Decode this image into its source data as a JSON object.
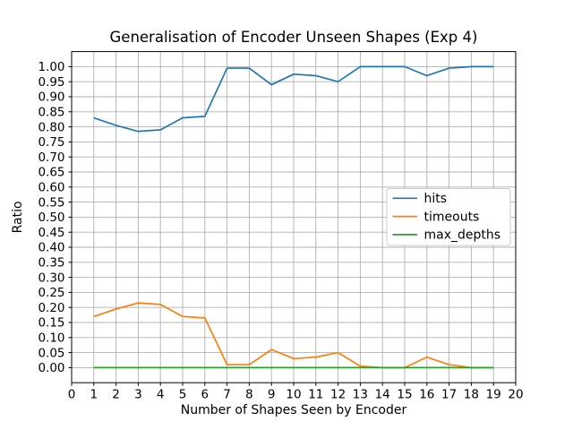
{
  "figure": {
    "background": "#ffffff",
    "spine_color": "#000000"
  },
  "chart_data": {
    "type": "line",
    "title": "Generalisation of Encoder Unseen Shapes (Exp 4)",
    "xlabel": "Number of Shapes Seen by Encoder",
    "ylabel": "Ratio",
    "xlim": [
      0,
      20
    ],
    "ylim": [
      -0.05,
      1.05
    ],
    "grid": true,
    "grid_color": "#b0b0b0",
    "x_ticks": [
      0,
      1,
      2,
      3,
      4,
      5,
      6,
      7,
      8,
      9,
      10,
      11,
      12,
      13,
      14,
      15,
      16,
      17,
      18,
      19,
      20
    ],
    "x_tick_labels": [
      "0",
      "1",
      "2",
      "3",
      "4",
      "5",
      "6",
      "7",
      "8",
      "9",
      "10",
      "11",
      "12",
      "13",
      "14",
      "15",
      "16",
      "17",
      "18",
      "19",
      "20"
    ],
    "y_ticks": [
      0.0,
      0.05,
      0.1,
      0.15,
      0.2,
      0.25,
      0.3,
      0.35,
      0.4,
      0.45,
      0.5,
      0.55,
      0.6,
      0.65,
      0.7,
      0.75,
      0.8,
      0.85,
      0.9,
      0.95,
      1.0
    ],
    "y_tick_labels": [
      "0.00",
      "0.05",
      "0.10",
      "0.15",
      "0.20",
      "0.25",
      "0.30",
      "0.35",
      "0.40",
      "0.45",
      "0.50",
      "0.55",
      "0.60",
      "0.65",
      "0.70",
      "0.75",
      "0.80",
      "0.85",
      "0.90",
      "0.95",
      "1.00"
    ],
    "x": [
      1,
      2,
      3,
      4,
      5,
      6,
      7,
      8,
      9,
      10,
      11,
      12,
      13,
      14,
      15,
      16,
      17,
      18,
      19
    ],
    "series": [
      {
        "name": "hits",
        "color": "#1f77b4",
        "values": [
          0.83,
          0.805,
          0.785,
          0.79,
          0.83,
          0.835,
          0.995,
          0.995,
          0.94,
          0.975,
          0.97,
          0.95,
          1.0,
          1.0,
          1.0,
          0.97,
          0.995,
          1.0,
          1.0
        ]
      },
      {
        "name": "timeouts",
        "color": "#ff7f0e",
        "values": [
          0.17,
          0.195,
          0.215,
          0.21,
          0.17,
          0.165,
          0.01,
          0.01,
          0.06,
          0.03,
          0.035,
          0.05,
          0.005,
          0.0,
          0.0,
          0.035,
          0.01,
          0.0,
          0.0
        ]
      },
      {
        "name": "max_depths",
        "color": "#2ca02c",
        "values": [
          0.0,
          0.0,
          0.0,
          0.0,
          0.0,
          0.0,
          0.0,
          0.0,
          0.0,
          0.0,
          0.0,
          0.0,
          0.0,
          0.0,
          0.0,
          0.0,
          0.0,
          0.0,
          0.0
        ]
      }
    ],
    "legend": {
      "position": "center-right",
      "entries": [
        "hits",
        "timeouts",
        "max_depths"
      ],
      "border_color": "#cccccc",
      "background": "#ffffff"
    }
  }
}
